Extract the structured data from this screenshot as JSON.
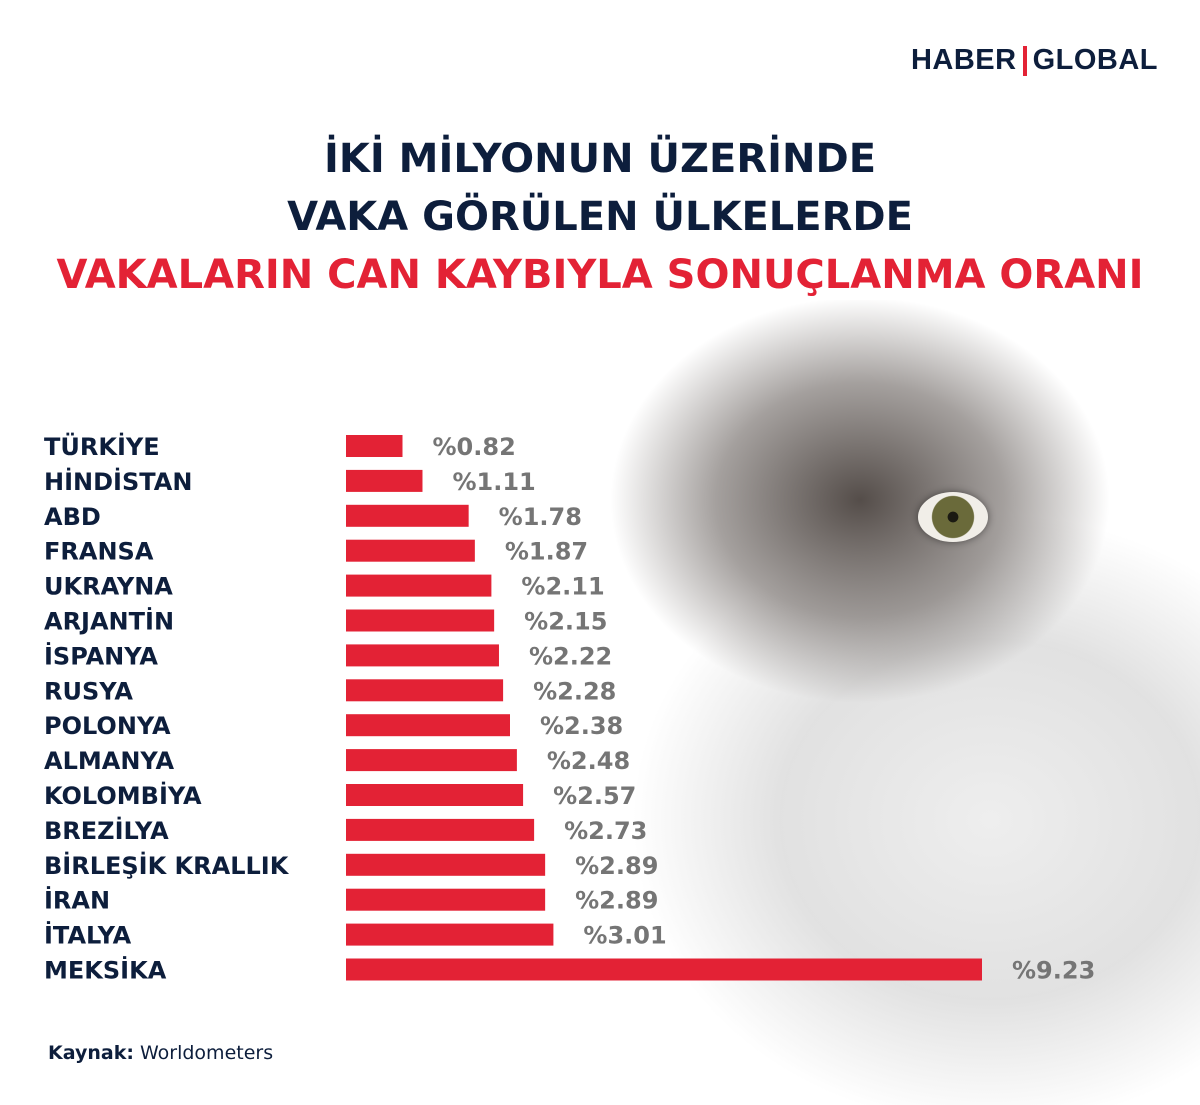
{
  "brand": {
    "left": "HABER",
    "right": "GLOBAL"
  },
  "title": {
    "line1": "İKİ MİLYONUN ÜZERİNDE",
    "line2": "VAKA GÖRÜLEN ÜLKELERDE",
    "line3": "VAKALARIN CAN KAYBIYLA SONUÇLANMA ORANI"
  },
  "source": {
    "label": "Kaynak:",
    "value": "Worldometers"
  },
  "colors": {
    "bar": "#e32235",
    "title": "#0d1e3c",
    "value": "#757575"
  },
  "chart_data": {
    "type": "bar",
    "orientation": "horizontal",
    "categories": [
      "TÜRKİYE",
      "HİNDİSTAN",
      "ABD",
      "FRANSA",
      "UKRAYNA",
      "ARJANTİN",
      "İSPANYA",
      "RUSYA",
      "POLONYA",
      "ALMANYA",
      "KOLOMBİYA",
      "BREZİLYA",
      "BİRLEŞİK KRALLIK",
      "İRAN",
      "İTALYA",
      "MEKSİKA"
    ],
    "values": [
      0.82,
      1.11,
      1.78,
      1.87,
      2.11,
      2.15,
      2.22,
      2.28,
      2.38,
      2.48,
      2.57,
      2.73,
      2.89,
      2.89,
      3.01,
      9.23
    ],
    "labels": [
      "%0.82",
      "%1.11",
      "%1.78",
      "%1.87",
      "%2.11",
      "%2.15",
      "%2.22",
      "%2.28",
      "%2.38",
      "%2.48",
      "%2.57",
      "%2.73",
      "%2.89",
      "%2.89",
      "%3.01",
      "%9.23"
    ],
    "legend": "none",
    "grid": false
  }
}
